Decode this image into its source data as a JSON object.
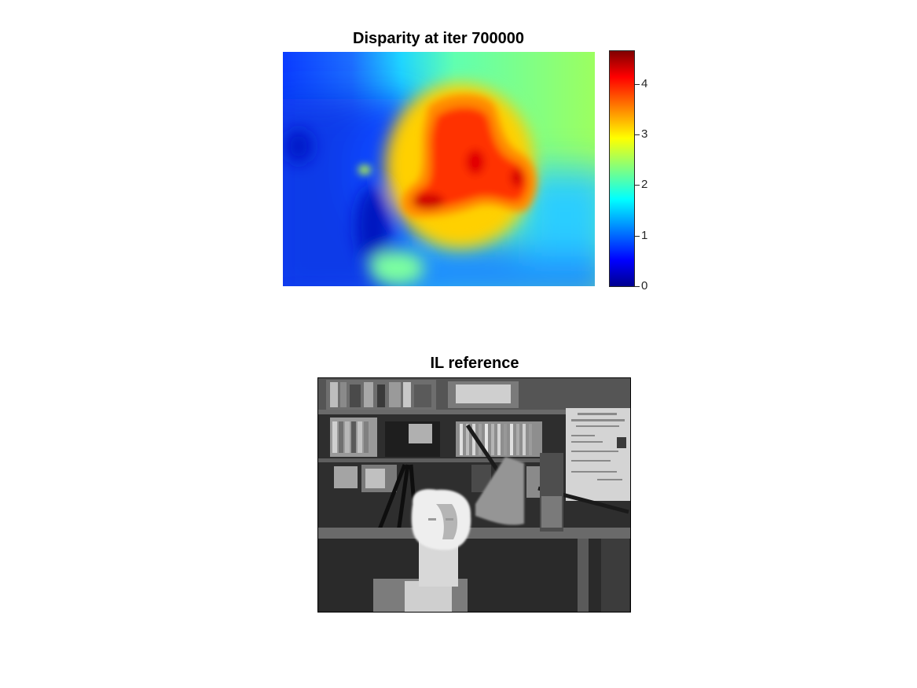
{
  "chart_data": [
    {
      "type": "heatmap",
      "title": "Disparity at iter 700000",
      "xlabel": "",
      "ylabel": "",
      "colormap": "jet",
      "colorbar": {
        "range": [
          0,
          4.65
        ],
        "ticks": [
          0,
          1,
          2,
          3,
          4
        ],
        "tick_labels": [
          "0",
          "1",
          "2",
          "3",
          "4"
        ]
      },
      "approx_regions": [
        {
          "area": "center blob",
          "value": 4.2
        },
        {
          "area": "top-right background",
          "value": 2.3
        },
        {
          "area": "left background",
          "value": 0.8
        },
        {
          "area": "bottom-left patch",
          "value": 2.3
        }
      ]
    },
    {
      "type": "image",
      "title": "IL reference",
      "colormap": "gray"
    }
  ]
}
